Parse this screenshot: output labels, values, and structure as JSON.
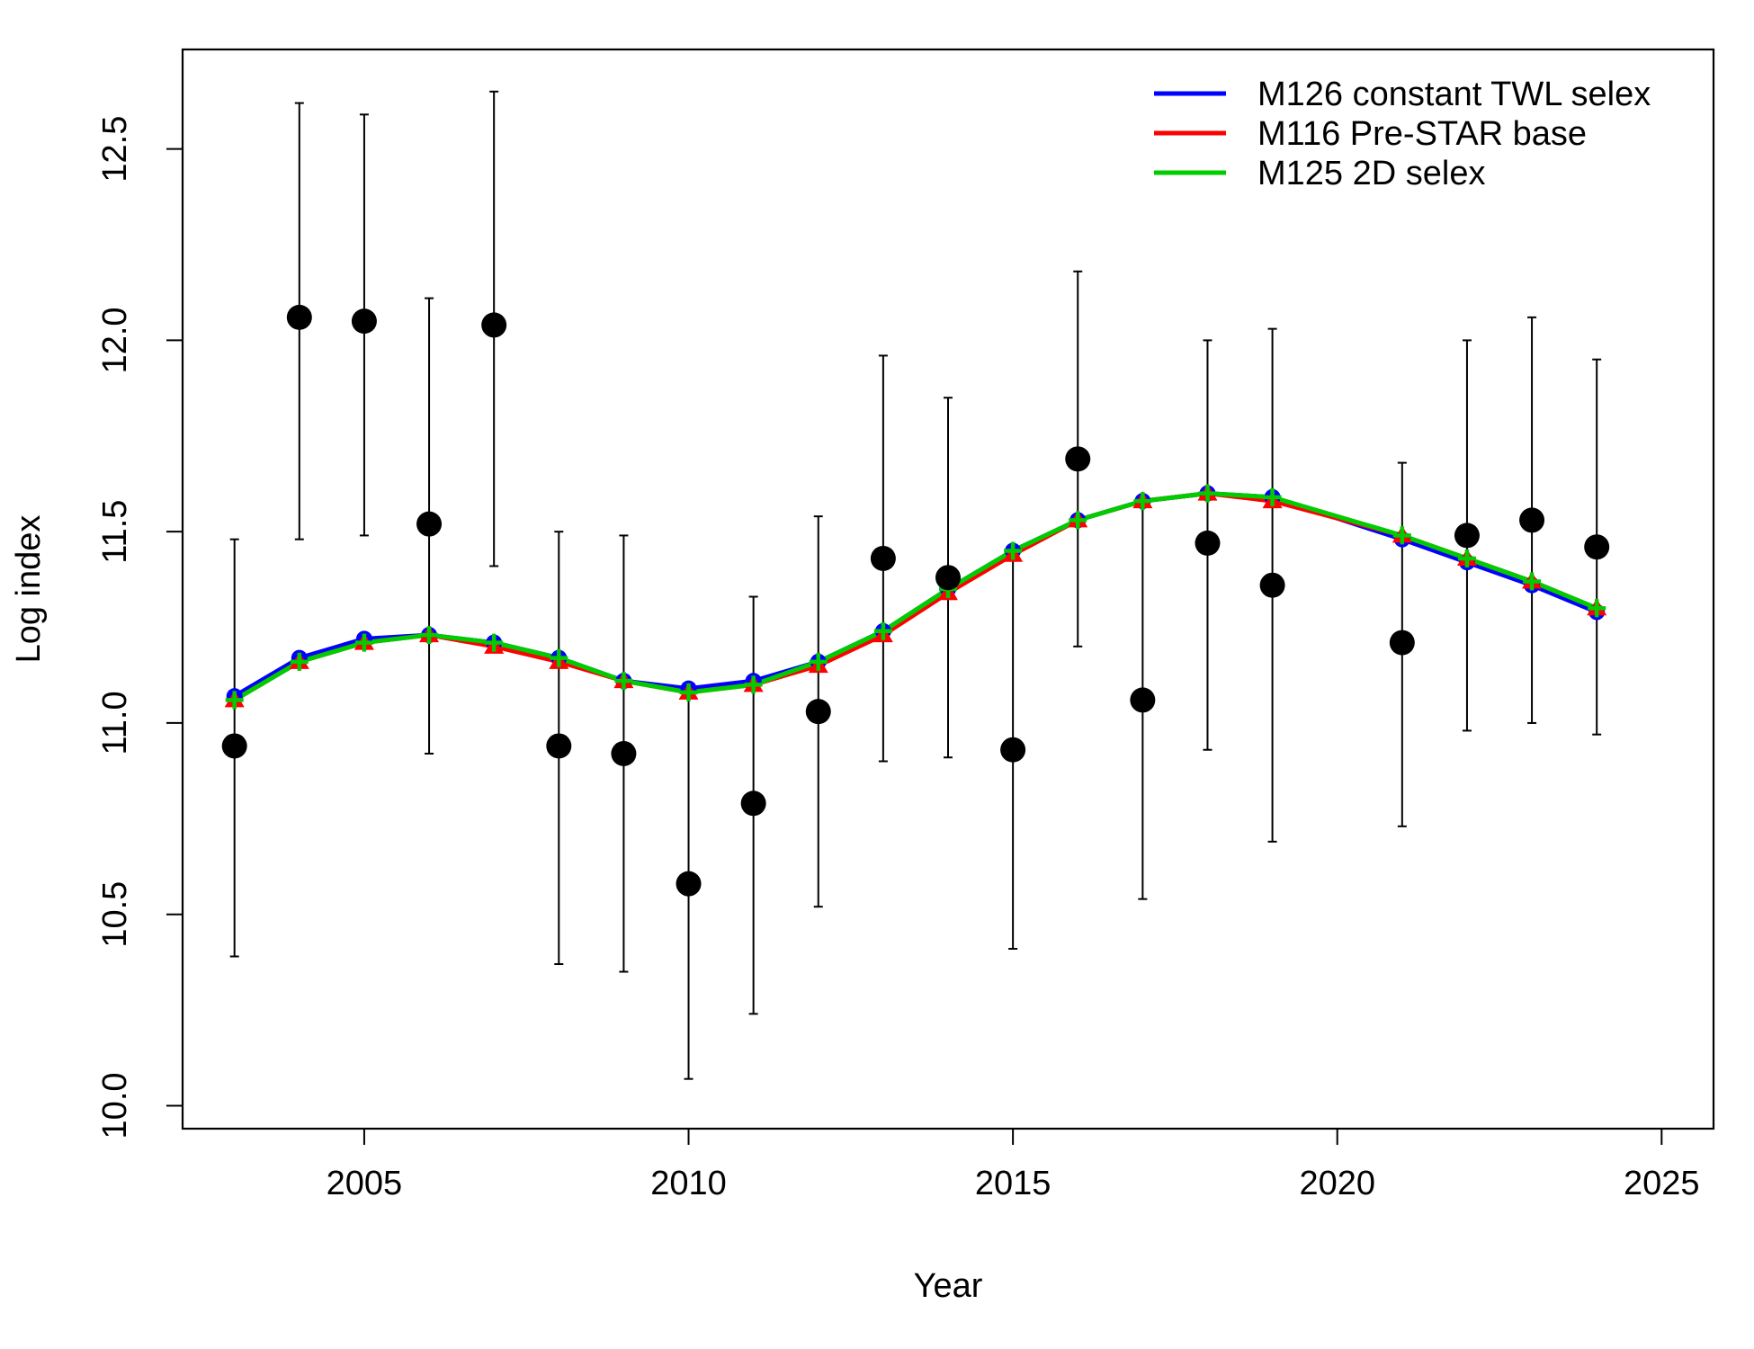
{
  "chart_data": {
    "type": "line",
    "xlabel": "Year",
    "ylabel": "Log index",
    "xlim": [
      2002.2,
      2025.8
    ],
    "ylim": [
      9.94,
      12.76
    ],
    "xticks": [
      2005,
      2010,
      2015,
      2020,
      2025
    ],
    "yticks": [
      10.0,
      10.5,
      11.0,
      11.5,
      12.0,
      12.5
    ],
    "ytick_labels": [
      "10.0",
      "10.5",
      "11.0",
      "11.5",
      "12.0",
      "12.5"
    ],
    "legend_position": "top-right",
    "grid": false,
    "observations": {
      "marker": "filled-circle",
      "color": "#000000",
      "x": [
        2003,
        2004,
        2005,
        2006,
        2007,
        2008,
        2009,
        2010,
        2011,
        2012,
        2013,
        2014,
        2015,
        2016,
        2017,
        2018,
        2019,
        2021,
        2022,
        2023,
        2024
      ],
      "y": [
        10.94,
        12.06,
        12.05,
        11.52,
        12.04,
        10.94,
        10.92,
        10.58,
        10.79,
        11.03,
        11.43,
        11.38,
        10.93,
        11.69,
        11.06,
        11.47,
        11.36,
        11.21,
        11.49,
        11.53,
        11.46
      ],
      "lower": [
        10.39,
        11.48,
        11.49,
        10.92,
        11.41,
        10.37,
        10.35,
        10.07,
        10.24,
        10.52,
        10.9,
        10.91,
        10.41,
        11.2,
        10.54,
        10.93,
        10.69,
        10.73,
        10.98,
        11.0,
        10.97
      ],
      "upper": [
        11.48,
        12.62,
        12.59,
        12.11,
        12.65,
        11.5,
        11.49,
        11.1,
        11.33,
        11.54,
        11.96,
        11.85,
        11.44,
        12.18,
        11.58,
        12.0,
        12.03,
        11.68,
        12.0,
        12.06,
        11.95
      ]
    },
    "series": [
      {
        "name": "M126 constant TWL selex",
        "color": "#0000ff",
        "marker": "circle",
        "x": [
          2003,
          2004,
          2005,
          2006,
          2007,
          2008,
          2009,
          2010,
          2011,
          2012,
          2013,
          2014,
          2015,
          2016,
          2017,
          2018,
          2019,
          2021,
          2022,
          2023,
          2024
        ],
        "y": [
          11.07,
          11.17,
          11.22,
          11.23,
          11.21,
          11.17,
          11.11,
          11.09,
          11.11,
          11.16,
          11.24,
          11.35,
          11.45,
          11.53,
          11.58,
          11.6,
          11.59,
          11.48,
          11.42,
          11.36,
          11.29
        ]
      },
      {
        "name": "M116 Pre-STAR base",
        "color": "#ff0000",
        "marker": "triangle",
        "x": [
          2003,
          2004,
          2005,
          2006,
          2007,
          2008,
          2009,
          2010,
          2011,
          2012,
          2013,
          2014,
          2015,
          2016,
          2017,
          2018,
          2019,
          2021,
          2022,
          2023,
          2024
        ],
        "y": [
          11.06,
          11.16,
          11.21,
          11.23,
          11.2,
          11.16,
          11.11,
          11.08,
          11.1,
          11.15,
          11.23,
          11.34,
          11.44,
          11.53,
          11.58,
          11.6,
          11.58,
          11.49,
          11.43,
          11.37,
          11.3
        ]
      },
      {
        "name": "M125 2D selex",
        "color": "#00cc00",
        "marker": "plus",
        "x": [
          2003,
          2004,
          2005,
          2006,
          2007,
          2008,
          2009,
          2010,
          2011,
          2012,
          2013,
          2014,
          2015,
          2016,
          2017,
          2018,
          2019,
          2021,
          2022,
          2023,
          2024
        ],
        "y": [
          11.06,
          11.16,
          11.21,
          11.23,
          11.21,
          11.17,
          11.11,
          11.08,
          11.1,
          11.16,
          11.24,
          11.35,
          11.45,
          11.53,
          11.58,
          11.6,
          11.59,
          11.49,
          11.43,
          11.37,
          11.3
        ]
      }
    ]
  }
}
